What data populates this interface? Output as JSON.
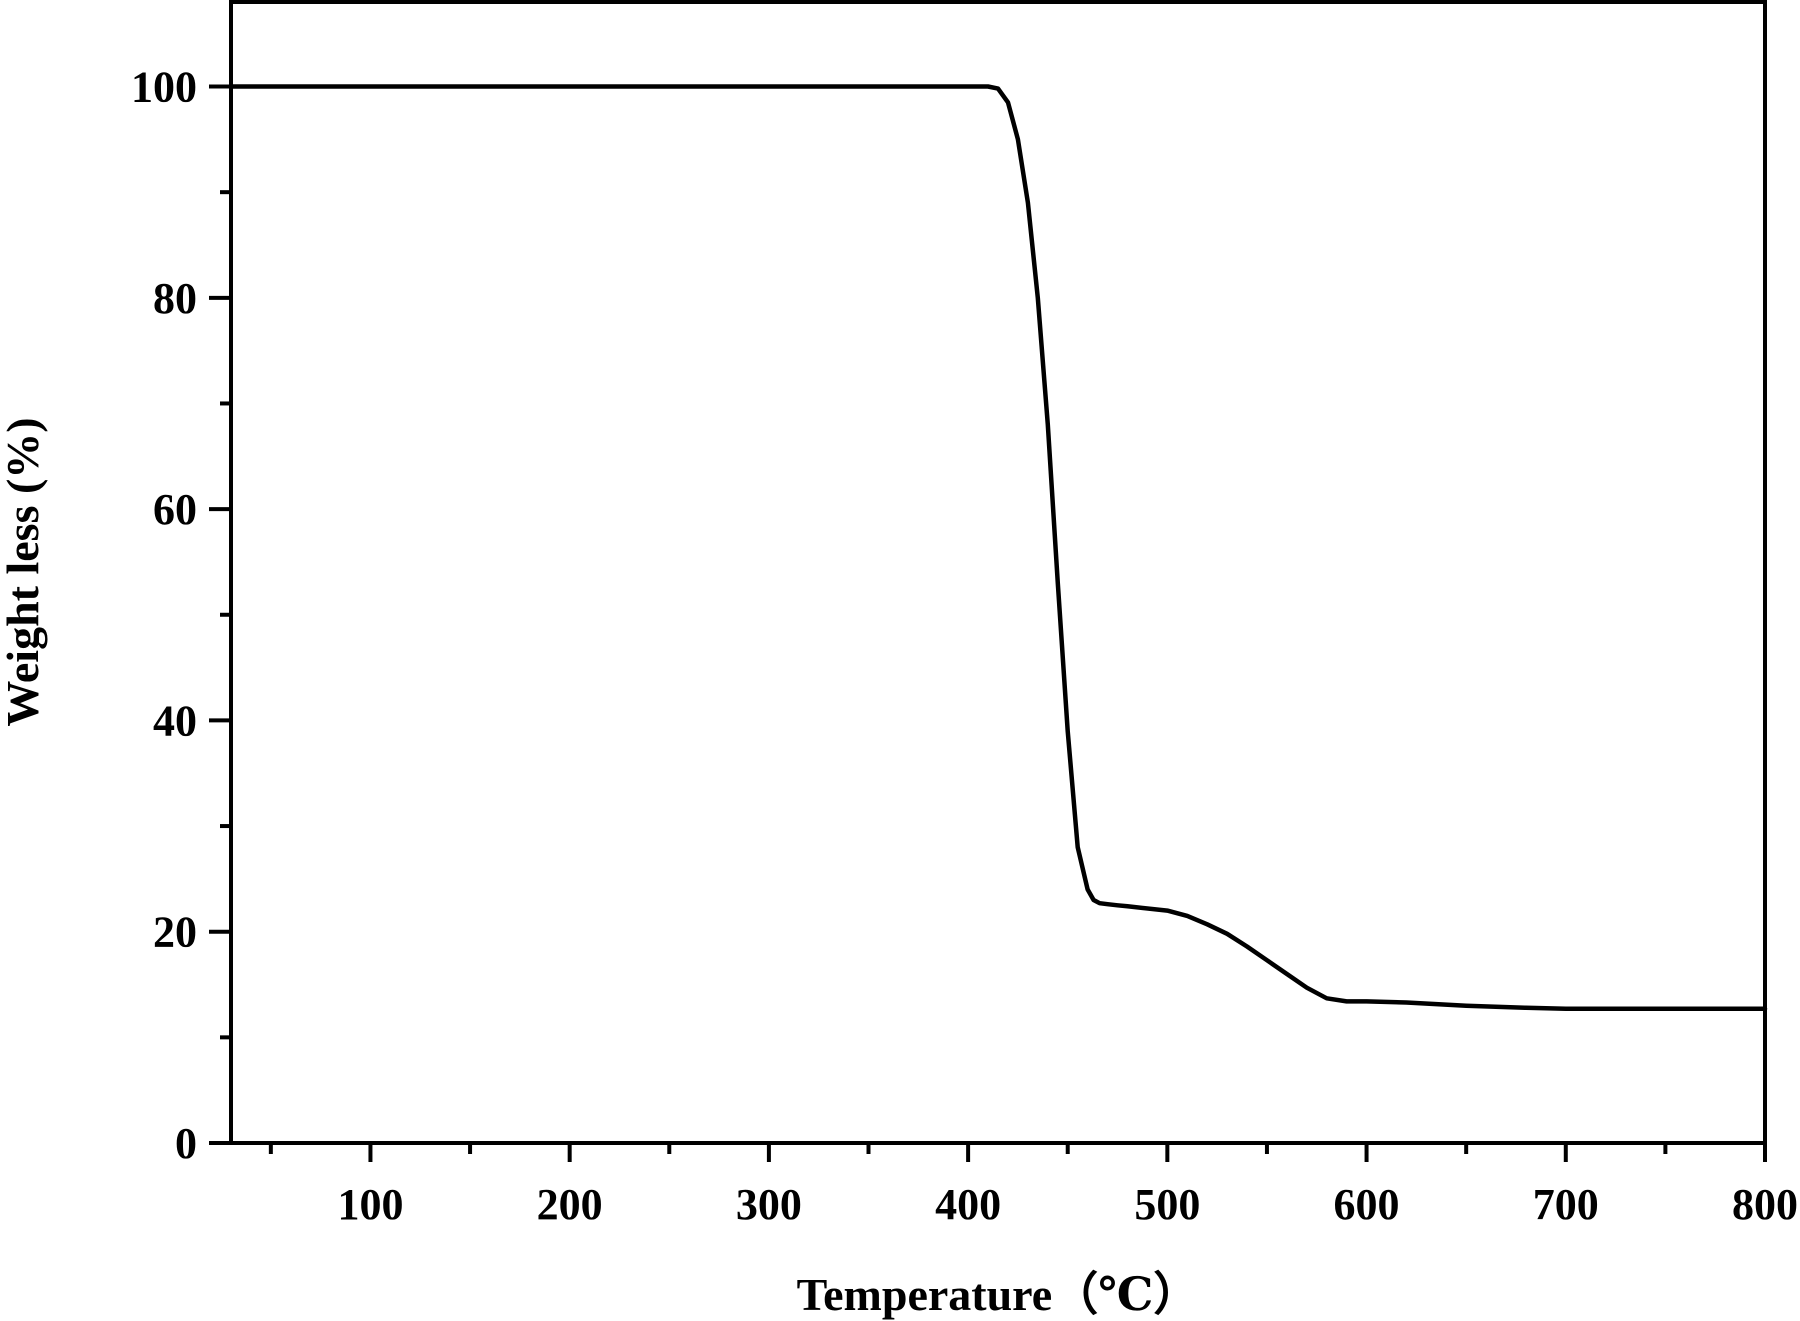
{
  "chart_data": {
    "type": "line",
    "xlabel": "Temperature（℃）",
    "ylabel": "Weight less (%)",
    "xlim": [
      30,
      800
    ],
    "ylim": [
      0,
      108
    ],
    "x_ticks": [
      100,
      200,
      300,
      400,
      500,
      600,
      700,
      800
    ],
    "x_minor_ticks": [
      50,
      150,
      250,
      350,
      450,
      550,
      650,
      750
    ],
    "y_ticks": [
      0,
      20,
      40,
      60,
      80,
      100
    ],
    "y_minor_ticks": [
      10,
      30,
      50,
      70,
      90
    ],
    "grid": false,
    "legend": "none",
    "line_color": "#000000",
    "series": [
      {
        "x": [
          30,
          100,
          200,
          300,
          400,
          410,
          415,
          420,
          425,
          430,
          435,
          440,
          445,
          450,
          455,
          460,
          463,
          466,
          470,
          475,
          480,
          500,
          510,
          520,
          530,
          540,
          550,
          560,
          570,
          580,
          590,
          600,
          620,
          650,
          680,
          700,
          750,
          800
        ],
        "values": [
          100,
          100,
          100,
          100,
          100,
          100,
          99.8,
          98.5,
          95,
          89,
          80,
          68,
          53,
          39,
          28,
          24,
          23,
          22.7,
          22.6,
          22.5,
          22.4,
          22.0,
          21.5,
          20.7,
          19.8,
          18.6,
          17.3,
          16.0,
          14.7,
          13.7,
          13.4,
          13.4,
          13.3,
          13.0,
          12.8,
          12.7,
          12.7,
          12.7
        ]
      }
    ]
  }
}
